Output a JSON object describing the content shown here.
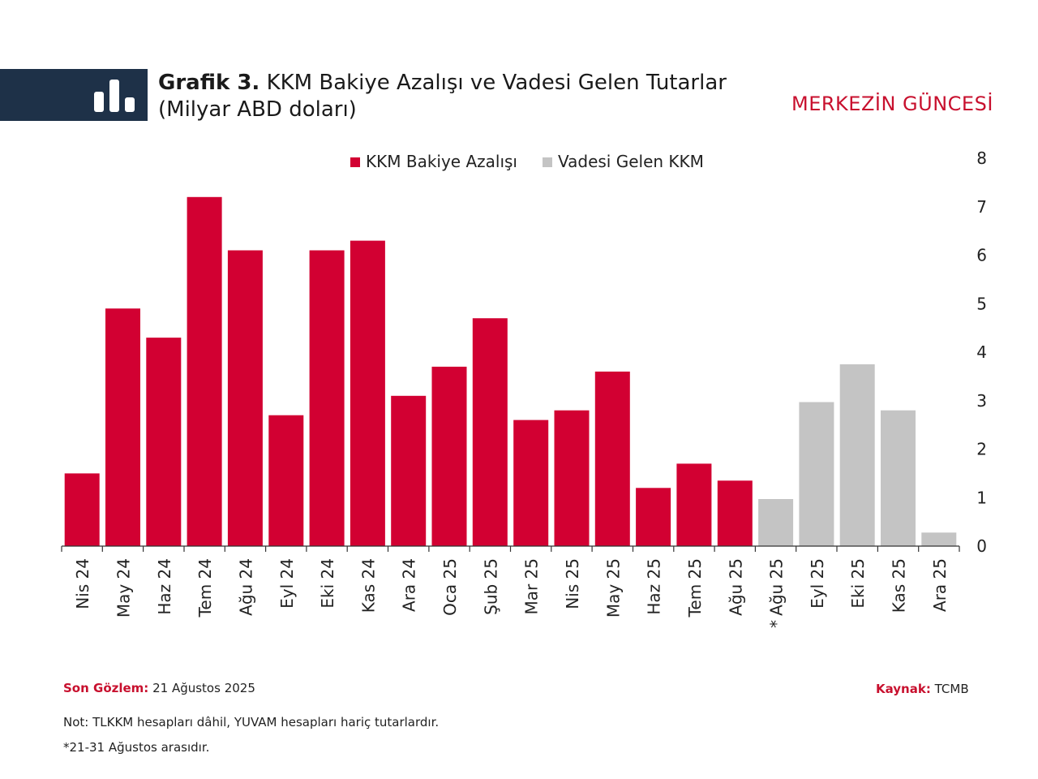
{
  "header": {
    "title_bold": "Grafik 3.",
    "title_rest": "KKM Bakiye Azalışı ve Vadesi Gelen Tutarlar",
    "subtitle": "(Milyar ABD doları)",
    "brand": "MERKEZİN GÜNCESİ",
    "icon": "bar-chart-icon"
  },
  "colors": {
    "red": "#d20032",
    "grey": "#c4c4c4",
    "band": "#1e3148",
    "label_red": "#c8102e"
  },
  "chart_data": {
    "type": "bar",
    "title": "KKM Bakiye Azalışı ve Vadesi Gelen Tutarlar",
    "ylabel": "Milyar ABD doları",
    "ylim": [
      0,
      8
    ],
    "yticks": [
      "0",
      "1",
      "2",
      "3",
      "4",
      "5",
      "6",
      "7",
      "8"
    ],
    "legend_position": "top-center",
    "categories": [
      "Nis 24",
      "May 24",
      "Haz 24",
      "Tem 24",
      "Ağu 24",
      "Eyl 24",
      "Eki 24",
      "Kas 24",
      "Ara 24",
      "Oca 25",
      "Şub 25",
      "Mar 25",
      "Nis 25",
      "May 25",
      "Haz 25",
      "Tem 25",
      "Ağu 25",
      "Ağu 25",
      "Eyl 25",
      "Eki 25",
      "Kas 25",
      "Ara 25"
    ],
    "star_marker": "*",
    "star_index": 17,
    "series": [
      {
        "name": "KKM Bakiye Azalışı",
        "color": "#d20032",
        "values": [
          1.5,
          4.9,
          4.3,
          7.2,
          6.1,
          2.7,
          6.1,
          6.3,
          3.1,
          3.7,
          4.7,
          2.6,
          2.8,
          3.6,
          1.2,
          1.7,
          1.35,
          null,
          null,
          null,
          null,
          null
        ]
      },
      {
        "name": "Vadesi Gelen KKM",
        "color": "#c4c4c4",
        "values": [
          null,
          null,
          null,
          null,
          null,
          null,
          null,
          null,
          null,
          null,
          null,
          null,
          null,
          null,
          null,
          null,
          null,
          0.97,
          2.97,
          3.75,
          2.8,
          0.28
        ]
      }
    ]
  },
  "footer": {
    "son_label": "Son Gözlem:",
    "son_value": "21 Ağustos 2025",
    "kaynak_label": "Kaynak:",
    "kaynak_value": "TCMB",
    "note": "Not: TLKKM hesapları dâhil, YUVAM hesapları hariç tutarlardır.",
    "footnote": "*21-31 Ağustos arasıdır."
  }
}
